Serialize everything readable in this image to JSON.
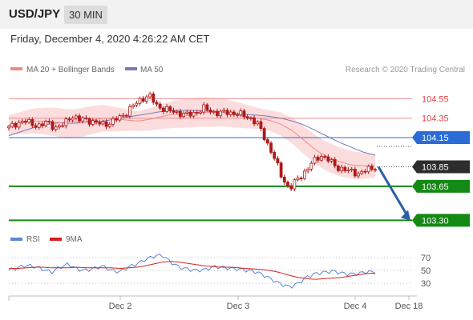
{
  "header": {
    "symbol": "USD/JPY",
    "timeframe": "30 MIN",
    "datetime": "Friday, December 4, 2020 4:26:22 AM CET"
  },
  "legend": {
    "ma20_label": "MA 20 + Bollinger Bands",
    "ma50_label": "MA 50",
    "copyright": "Research © 2020 Trading Central",
    "rsi_label": "RSI",
    "ma9_label": "9MA"
  },
  "colors": {
    "candle": "#b01919",
    "ma20": "#ef8a8a",
    "band_fill": "#fcd9d9",
    "ma50": "#7a7ab8",
    "resistance": "#f28b8b",
    "pivot": "#2a6bd6",
    "support": "#138a13",
    "last_price": "#2d2d2d",
    "arrow": "#2b5ea8",
    "rsi": "#5b86d6",
    "rsi_ma": "#d42020"
  },
  "chart_data": [
    {
      "type": "candlestick",
      "title": "USD/JPY 30 MIN",
      "x_ticks": [
        "Dec 2",
        "Dec 3",
        "Dec 4",
        "Dec 18"
      ],
      "ylim": [
        103.18,
        104.66
      ],
      "series": [
        {
          "name": "MA 20 + Bollinger Bands",
          "values": [
            104.28,
            104.3,
            104.32,
            104.32,
            104.31,
            104.29,
            104.3,
            104.33,
            104.35,
            104.34,
            104.33,
            104.32,
            104.34,
            104.37,
            104.39,
            104.4,
            104.41,
            104.41,
            104.41,
            104.39,
            104.37,
            104.35,
            104.33,
            104.29,
            104.22,
            104.12,
            104.02,
            103.95,
            103.9,
            103.87,
            103.86,
            103.86
          ]
        },
        {
          "name": "MA 50",
          "values": [
            104.17,
            104.21,
            104.25,
            104.28,
            104.3,
            104.31,
            104.31,
            104.31,
            104.32,
            104.34,
            104.36,
            104.38,
            104.4,
            104.42,
            104.43,
            104.43,
            104.43,
            104.42,
            104.41,
            104.4,
            104.39,
            104.38,
            104.37,
            104.35,
            104.32,
            104.28,
            104.22,
            104.16,
            104.1,
            104.05,
            104.0,
            103.97
          ]
        }
      ],
      "levels": [
        {
          "label": "104.55",
          "value": 104.55,
          "kind": "resistance"
        },
        {
          "label": "104.35",
          "value": 104.35,
          "kind": "resistance"
        },
        {
          "label": "104.15",
          "value": 104.15,
          "kind": "pivot"
        },
        {
          "label": "103.85",
          "value": 103.85,
          "kind": "last"
        },
        {
          "label": "103.65",
          "value": 103.65,
          "kind": "support"
        },
        {
          "label": "103.30",
          "value": 103.3,
          "kind": "support"
        }
      ],
      "price_path": [
        104.25,
        104.3,
        104.32,
        104.29,
        104.27,
        104.31,
        104.25,
        104.28,
        104.38,
        104.33,
        104.34,
        104.3,
        104.29,
        104.3,
        104.35,
        104.4,
        104.48,
        104.55,
        104.58,
        104.48,
        104.44,
        104.42,
        104.4,
        104.38,
        104.41,
        104.45,
        104.42,
        104.4,
        104.41,
        104.4,
        104.38,
        104.35,
        104.28,
        104.12,
        103.95,
        103.75,
        103.62,
        103.72,
        103.8,
        103.9,
        103.97,
        103.92,
        103.85,
        103.82,
        103.8,
        103.78,
        103.82,
        103.85
      ],
      "arrow": {
        "from": 103.85,
        "to": 103.3
      }
    },
    {
      "type": "line",
      "title": "RSI",
      "y_ticks": [
        "70",
        "50",
        "30"
      ],
      "ylim": [
        15,
        85
      ],
      "series": [
        {
          "name": "RSI",
          "values": [
            50,
            54,
            58,
            56,
            52,
            47,
            55,
            60,
            52,
            50,
            53,
            57,
            50,
            48,
            55,
            60,
            67,
            72,
            74,
            63,
            55,
            52,
            50,
            51,
            56,
            55,
            53,
            52,
            50,
            48,
            42,
            35,
            28,
            24,
            30,
            40,
            45,
            47,
            49,
            46,
            44,
            45,
            48,
            47
          ]
        },
        {
          "name": "9MA",
          "values": [
            53,
            53,
            54,
            55,
            55,
            54,
            54,
            54,
            55,
            54,
            54,
            54,
            54,
            53,
            54,
            55,
            57,
            60,
            63,
            64,
            63,
            61,
            59,
            57,
            56,
            55,
            55,
            54,
            53,
            52,
            51,
            49,
            46,
            42,
            39,
            37,
            36,
            37,
            38,
            39,
            41,
            43,
            45,
            46
          ]
        }
      ]
    }
  ]
}
